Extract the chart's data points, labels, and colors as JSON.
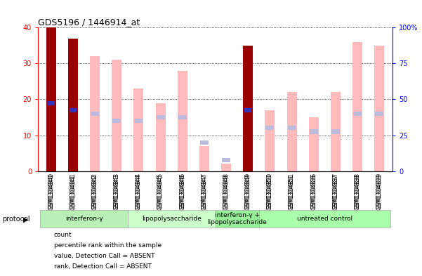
{
  "title": "GDS5196 / 1446914_at",
  "samples": [
    "GSM1304840",
    "GSM1304841",
    "GSM1304842",
    "GSM1304843",
    "GSM1304844",
    "GSM1304845",
    "GSM1304846",
    "GSM1304847",
    "GSM1304848",
    "GSM1304849",
    "GSM1304850",
    "GSM1304851",
    "GSM1304836",
    "GSM1304837",
    "GSM1304838",
    "GSM1304839"
  ],
  "count_values": [
    40,
    37,
    0,
    0,
    0,
    0,
    0,
    0,
    0,
    35,
    0,
    0,
    0,
    0,
    0,
    0
  ],
  "rank_values": [
    19,
    17,
    0,
    0,
    0,
    0,
    0,
    0,
    0,
    17,
    0,
    0,
    0,
    0,
    0,
    0
  ],
  "absent_value": [
    0,
    0,
    32,
    31,
    23,
    19,
    28,
    7,
    2,
    0,
    17,
    22,
    15,
    22,
    36,
    35
  ],
  "absent_rank": [
    0,
    0,
    16,
    14,
    14,
    15,
    15,
    8,
    3,
    0,
    12,
    12,
    11,
    11,
    16,
    16
  ],
  "protocol_groups": [
    {
      "label": "interferon-γ",
      "start": 0,
      "end": 4,
      "color": "#b8f0b8"
    },
    {
      "label": "lipopolysaccharide",
      "start": 4,
      "end": 8,
      "color": "#ccffcc"
    },
    {
      "label": "interferon-γ +\nlipopolysaccharide",
      "start": 8,
      "end": 10,
      "color": "#99ee99"
    },
    {
      "label": "untreated control",
      "start": 10,
      "end": 16,
      "color": "#aaffaa"
    }
  ],
  "ylim_left": [
    0,
    40
  ],
  "ylim_right": [
    0,
    100
  ],
  "left_ticks": [
    0,
    10,
    20,
    30,
    40
  ],
  "right_ticks": [
    0,
    25,
    50,
    75,
    100
  ],
  "right_tick_labels": [
    "0",
    "25",
    "50",
    "75",
    "100%"
  ],
  "count_color": "#990000",
  "rank_color": "#3333bb",
  "absent_val_color": "#ffbbbb",
  "absent_rank_color": "#bbbbdd",
  "bg_color": "#ffffff",
  "plot_bg_color": "#ffffff",
  "xtick_bg_color": "#cccccc"
}
